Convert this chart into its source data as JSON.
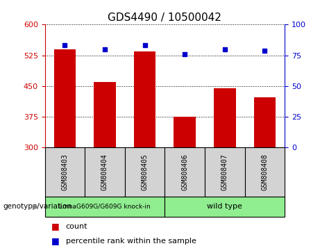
{
  "title": "GDS4490 / 10500042",
  "samples": [
    "GSM808403",
    "GSM808404",
    "GSM808405",
    "GSM808406",
    "GSM808407",
    "GSM808408"
  ],
  "counts": [
    540,
    460,
    535,
    375,
    445,
    422
  ],
  "percentiles": [
    83,
    80,
    83,
    76,
    80,
    79
  ],
  "ylim_left": [
    300,
    600
  ],
  "ylim_right": [
    0,
    100
  ],
  "yticks_left": [
    300,
    375,
    450,
    525,
    600
  ],
  "yticks_right": [
    0,
    25,
    50,
    75,
    100
  ],
  "bar_color": "#cc0000",
  "dot_color": "#0000cc",
  "group1_label": "LmnaG609G/G609G knock-in",
  "group2_label": "wild type",
  "group_bg_color": "#d3d3d3",
  "group_green_color": "#90ee90",
  "xlabel_group": "genotype/variation",
  "legend_count": "count",
  "legend_percentile": "percentile rank within the sample",
  "title_fontsize": 11,
  "tick_fontsize": 8,
  "axis_label_color_left": "#cc0000",
  "axis_label_color_right": "#0000cc",
  "bar_width": 0.55
}
